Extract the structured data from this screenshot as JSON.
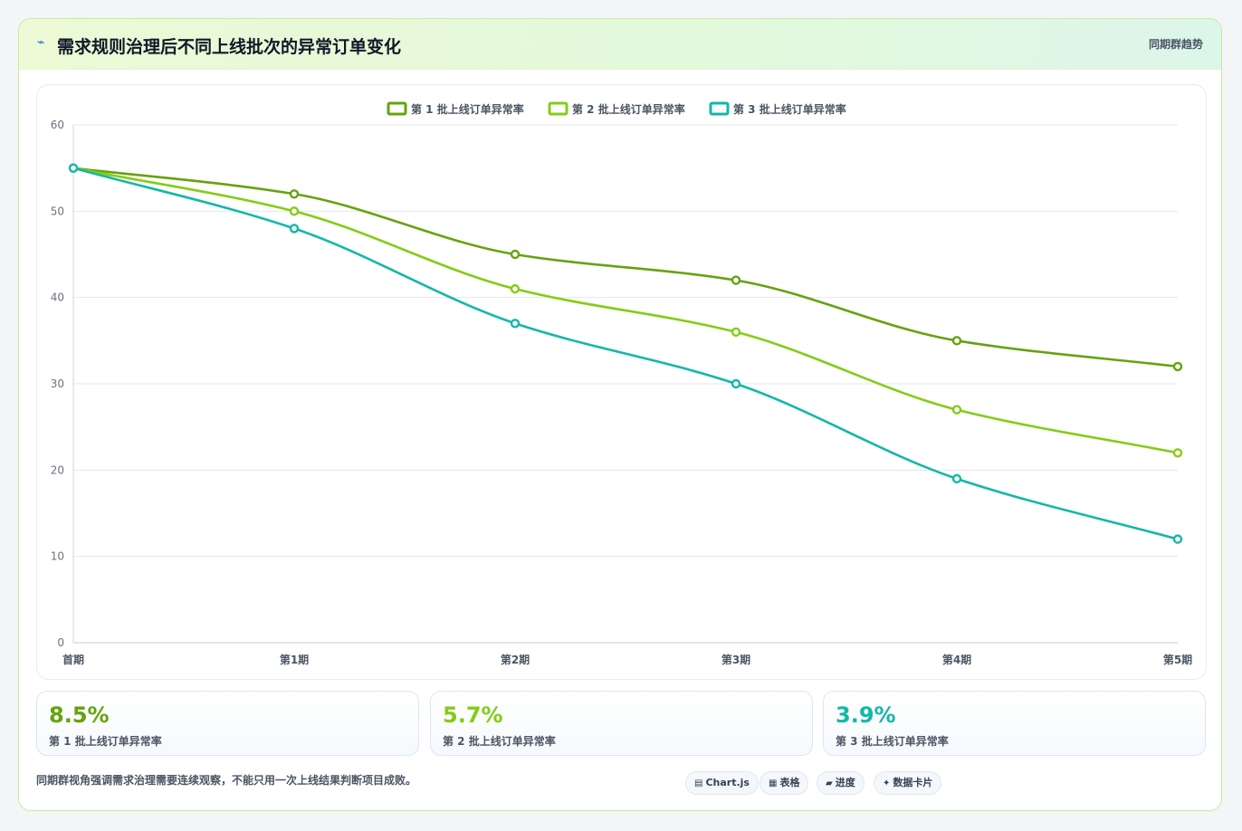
{
  "header": {
    "icon": "lightning-icon",
    "title": "需求规则治理后不同上线批次的异常订单变化",
    "tag": "同期群趋势"
  },
  "chart_data": {
    "type": "line",
    "categories": [
      "首期",
      "第1期",
      "第2期",
      "第3期",
      "第4期",
      "第5期"
    ],
    "series": [
      {
        "name": "第 1 批上线订单异常率",
        "color": "#65a30d",
        "values": [
          55,
          52,
          45,
          42,
          35,
          32
        ]
      },
      {
        "name": "第 2 批上线订单异常率",
        "color": "#84cc16",
        "values": [
          55,
          50,
          41,
          36,
          27,
          22
        ]
      },
      {
        "name": "第 3 批上线订单异常率",
        "color": "#14b8a6",
        "values": [
          55,
          48,
          37,
          30,
          19,
          12
        ]
      }
    ],
    "yticks": [
      0,
      10,
      20,
      30,
      40,
      50,
      60
    ],
    "ylim": [
      0,
      60
    ],
    "grid": true,
    "legend": "top-center"
  },
  "stats": [
    {
      "value": "8.5%",
      "label": "第 1 批上线订单异常率",
      "color": "#65a30d"
    },
    {
      "value": "5.7%",
      "label": "第 2 批上线订单异常率",
      "color": "#84cc16"
    },
    {
      "value": "3.9%",
      "label": "第 3 批上线订单异常率",
      "color": "#14b8a6"
    }
  ],
  "footer": {
    "note": "同期群视角强调需求治理需要连续观察，不能只用一次上线结果判断项目成败。",
    "pills": [
      {
        "icon": "chart-icon",
        "label": "Chart.js"
      },
      {
        "icon": "table-icon",
        "label": "表格"
      },
      {
        "icon": "progress-icon",
        "label": "进度"
      },
      {
        "icon": "sparkle-icon",
        "label": "数据卡片"
      }
    ]
  }
}
